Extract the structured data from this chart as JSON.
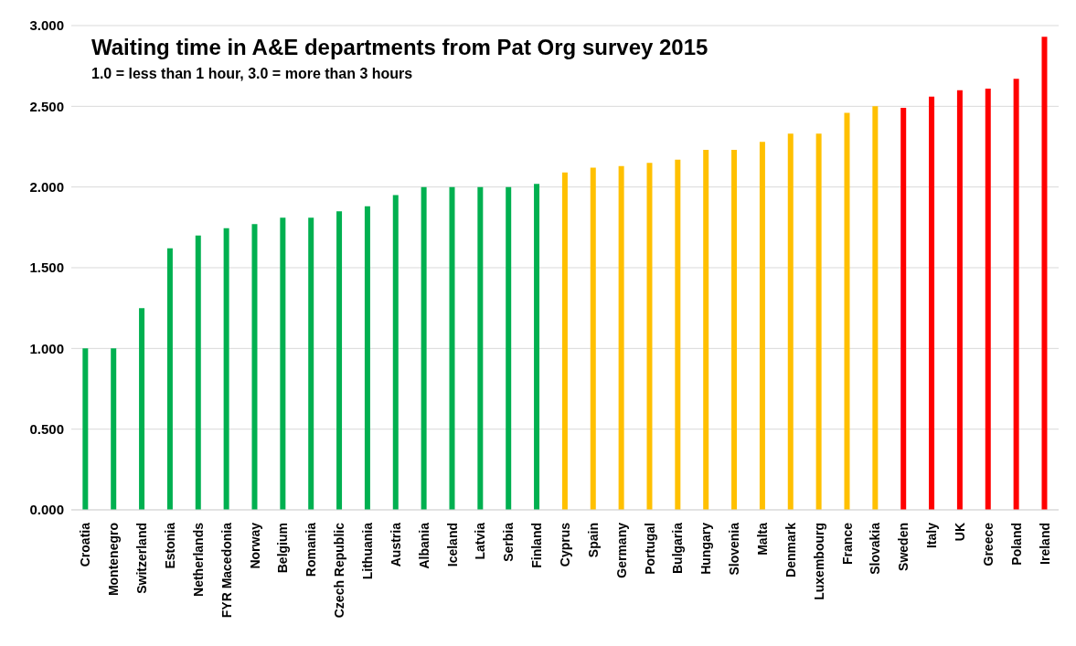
{
  "chart_data": {
    "type": "bar",
    "title": "Waiting time in A&E departments from Pat Org survey 2015",
    "subtitle": "1.0 = less than 1 hour, 3.0 = more than 3 hours",
    "categories": [
      "Croatia",
      "Montenegro",
      "Switzerland",
      "Estonia",
      "Netherlands",
      "FYR Macedonia",
      "Norway",
      "Belgium",
      "Romania",
      "Czech Republic",
      "Lithuania",
      "Austria",
      "Albania",
      "Iceland",
      "Latvia",
      "Serbia",
      "Finland",
      "Cyprus",
      "Spain",
      "Germany",
      "Portugal",
      "Bulgaria",
      "Hungary",
      "Slovenia",
      "Malta",
      "Denmark",
      "Luxembourg",
      "France",
      "Slovakia",
      "Sweden",
      "Italy",
      "UK",
      "Greece",
      "Poland",
      "Ireland"
    ],
    "values": [
      1.0,
      1.0,
      1.25,
      1.62,
      1.7,
      1.745,
      1.77,
      1.81,
      1.81,
      1.85,
      1.88,
      1.95,
      2.0,
      2.0,
      2.0,
      2.0,
      2.02,
      2.09,
      2.12,
      2.13,
      2.15,
      2.17,
      2.23,
      2.23,
      2.28,
      2.33,
      2.33,
      2.46,
      2.5,
      2.49,
      2.56,
      2.6,
      2.61,
      2.67,
      2.93
    ],
    "colors": [
      "#00b050",
      "#00b050",
      "#00b050",
      "#00b050",
      "#00b050",
      "#00b050",
      "#00b050",
      "#00b050",
      "#00b050",
      "#00b050",
      "#00b050",
      "#00b050",
      "#00b050",
      "#00b050",
      "#00b050",
      "#00b050",
      "#00b050",
      "#ffc000",
      "#ffc000",
      "#ffc000",
      "#ffc000",
      "#ffc000",
      "#ffc000",
      "#ffc000",
      "#ffc000",
      "#ffc000",
      "#ffc000",
      "#ffc000",
      "#ffc000",
      "#ff0000",
      "#ff0000",
      "#ff0000",
      "#ff0000",
      "#ff0000",
      "#ff0000"
    ],
    "ylim": [
      0,
      3
    ],
    "yticks": [
      {
        "value": 0,
        "label": "0.000"
      },
      {
        "value": 0.5,
        "label": "0.500"
      },
      {
        "value": 1,
        "label": "1.000"
      },
      {
        "value": 1.5,
        "label": "1.500"
      },
      {
        "value": 2,
        "label": "2.000"
      },
      {
        "value": 2.5,
        "label": "2.500"
      },
      {
        "value": 3,
        "label": "3.000"
      }
    ],
    "grid": "y"
  }
}
